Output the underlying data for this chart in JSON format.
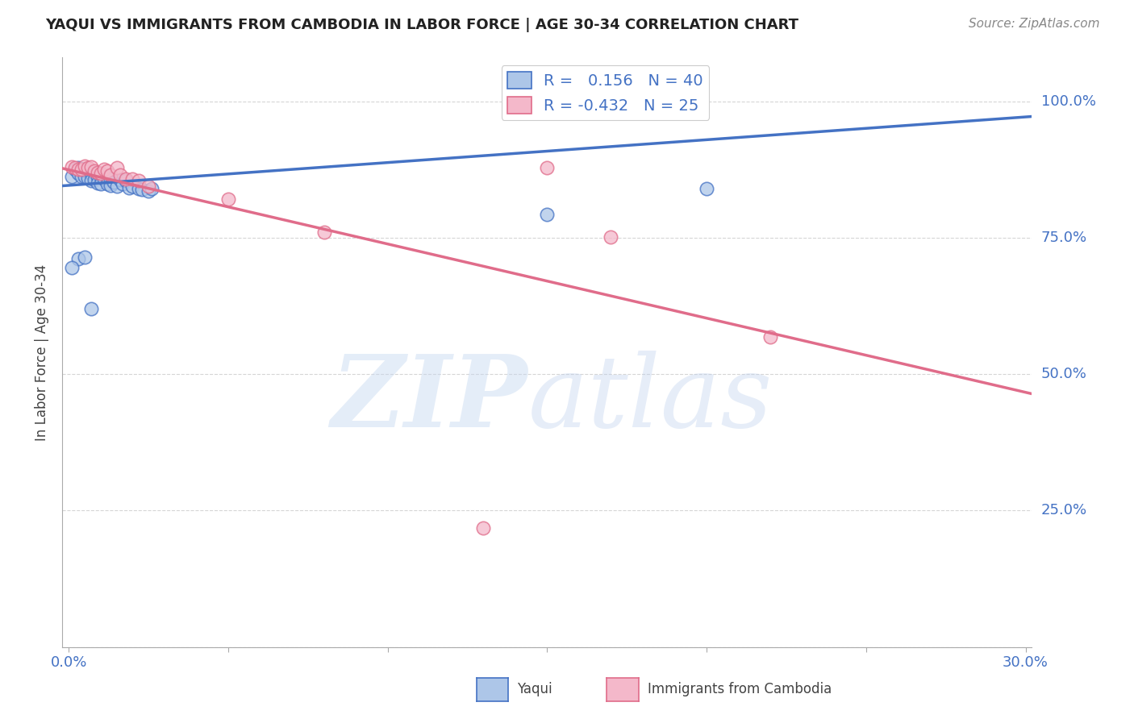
{
  "title": "YAQUI VS IMMIGRANTS FROM CAMBODIA IN LABOR FORCE | AGE 30-34 CORRELATION CHART",
  "source": "Source: ZipAtlas.com",
  "ylabel": "In Labor Force | Age 30-34",
  "x_ticks": [
    0.0,
    0.05,
    0.1,
    0.15,
    0.2,
    0.25,
    0.3
  ],
  "x_tick_labels": [
    "0.0%",
    "",
    "",
    "",
    "",
    "",
    "30.0%"
  ],
  "y_ticks": [
    0.0,
    0.25,
    0.5,
    0.75,
    1.0
  ],
  "y_tick_labels": [
    "",
    "25.0%",
    "50.0%",
    "75.0%",
    "100.0%"
  ],
  "xlim": [
    -0.002,
    0.302
  ],
  "ylim": [
    0.0,
    1.08
  ],
  "blue_scatter_x": [
    0.001,
    0.002,
    0.003,
    0.003,
    0.004,
    0.004,
    0.005,
    0.005,
    0.006,
    0.006,
    0.007,
    0.007,
    0.008,
    0.008,
    0.009,
    0.009,
    0.01,
    0.01,
    0.011,
    0.012,
    0.012,
    0.013,
    0.013,
    0.014,
    0.015,
    0.016,
    0.017,
    0.018,
    0.019,
    0.02,
    0.022,
    0.023,
    0.025,
    0.026,
    0.003,
    0.005,
    0.15,
    0.2,
    0.001,
    0.007
  ],
  "blue_scatter_y": [
    0.862,
    0.875,
    0.878,
    0.868,
    0.875,
    0.862,
    0.875,
    0.862,
    0.871,
    0.859,
    0.868,
    0.855,
    0.869,
    0.856,
    0.862,
    0.85,
    0.86,
    0.848,
    0.858,
    0.862,
    0.848,
    0.858,
    0.846,
    0.852,
    0.845,
    0.856,
    0.848,
    0.855,
    0.842,
    0.845,
    0.84,
    0.838,
    0.835,
    0.84,
    0.712,
    0.715,
    0.792,
    0.84,
    0.695,
    0.62
  ],
  "pink_scatter_x": [
    0.001,
    0.002,
    0.003,
    0.004,
    0.005,
    0.006,
    0.007,
    0.008,
    0.009,
    0.01,
    0.011,
    0.012,
    0.013,
    0.015,
    0.016,
    0.018,
    0.02,
    0.022,
    0.025,
    0.05,
    0.08,
    0.15,
    0.17,
    0.22,
    0.13
  ],
  "pink_scatter_y": [
    0.88,
    0.878,
    0.875,
    0.875,
    0.881,
    0.878,
    0.88,
    0.872,
    0.87,
    0.868,
    0.875,
    0.872,
    0.865,
    0.878,
    0.865,
    0.858,
    0.858,
    0.855,
    0.845,
    0.82,
    0.76,
    0.878,
    0.752,
    0.568,
    0.218
  ],
  "blue_line_x": [
    -0.002,
    0.302
  ],
  "blue_line_y": [
    0.845,
    0.972
  ],
  "pink_line_x": [
    -0.002,
    0.302
  ],
  "pink_line_y": [
    0.877,
    0.464
  ],
  "blue_color": "#4472c4",
  "pink_color": "#e06c8a",
  "blue_fill": "#adc6e8",
  "pink_fill": "#f4b8ca",
  "watermark_zip_color": "#c8d8f0",
  "watermark_atlas_color": "#b8c8e8",
  "grid_color": "#cccccc",
  "title_color": "#222222",
  "axis_label_color": "#444444",
  "tick_label_color": "#4472c4",
  "source_color": "#888888",
  "legend_label_color": "#4472c4",
  "bottom_legend_labels": [
    "Yaqui",
    "Immigrants from Cambodia"
  ]
}
